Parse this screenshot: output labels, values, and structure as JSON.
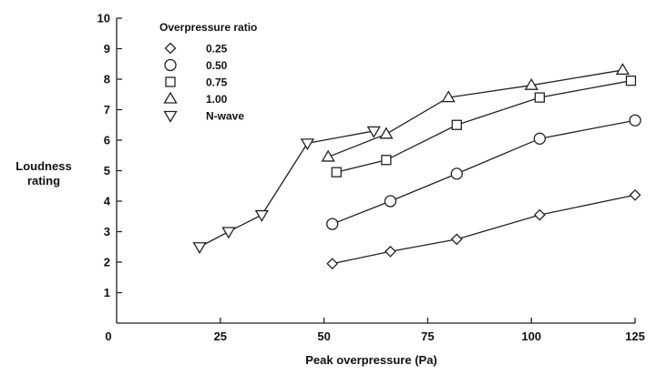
{
  "chart_data": {
    "type": "line",
    "xlabel": "Peak overpressure (Pa)",
    "ylabel_lines": [
      "Loudness",
      "rating"
    ],
    "xlim": [
      0,
      125
    ],
    "ylim": [
      0,
      10
    ],
    "xticks": [
      0,
      25,
      50,
      75,
      100,
      125
    ],
    "yticks": [
      1,
      2,
      3,
      4,
      5,
      6,
      7,
      8,
      9,
      10
    ],
    "grid": false,
    "legend": {
      "title": "Overpressure ratio",
      "placement": "top-left"
    },
    "series": [
      {
        "name": "0.25",
        "marker": "diamond",
        "x": [
          52,
          66,
          82,
          102,
          125
        ],
        "y": [
          1.95,
          2.35,
          2.75,
          3.55,
          4.2
        ]
      },
      {
        "name": "0.50",
        "marker": "circle",
        "x": [
          52,
          66,
          82,
          102,
          125
        ],
        "y": [
          3.25,
          4.0,
          4.9,
          6.05,
          6.65
        ]
      },
      {
        "name": "0.75",
        "marker": "square",
        "x": [
          53,
          65,
          82,
          102,
          124
        ],
        "y": [
          4.95,
          5.35,
          6.5,
          7.4,
          7.95
        ]
      },
      {
        "name": "1.00",
        "marker": "triangle-up",
        "x": [
          51,
          65,
          80,
          100,
          122
        ],
        "y": [
          5.45,
          6.2,
          7.4,
          7.8,
          8.3
        ]
      },
      {
        "name": "N-wave",
        "marker": "triangle-down",
        "x": [
          20,
          27,
          35,
          46,
          62
        ],
        "y": [
          2.5,
          3.0,
          3.55,
          5.9,
          6.3
        ]
      }
    ]
  }
}
